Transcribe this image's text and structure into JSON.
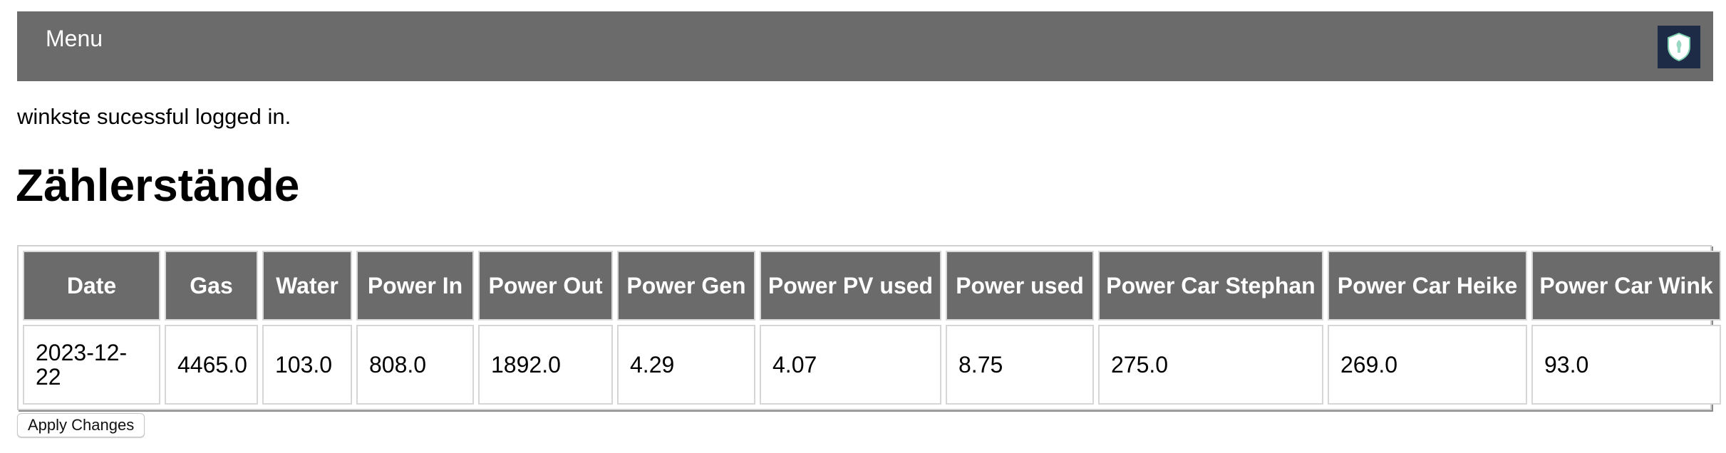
{
  "nav": {
    "menu_label": "Menu",
    "logo_icon": "shield-icon"
  },
  "status": {
    "message": "winkste sucessful logged in."
  },
  "page": {
    "title": "Zählerstände"
  },
  "table": {
    "columns": [
      "Date",
      "Gas",
      "Water",
      "Power In",
      "Power Out",
      "Power Gen",
      "Power PV used",
      "Power used",
      "Power Car Stephan",
      "Power Car Heike",
      "Power Car Wink"
    ],
    "rows": [
      [
        "2023-12-22",
        "4465.0",
        "103.0",
        "808.0",
        "1892.0",
        "4.29",
        "4.07",
        "8.75",
        "275.0",
        "269.0",
        "93.0"
      ]
    ]
  },
  "actions": {
    "apply_label": "Apply Changes"
  },
  "colors": {
    "header_bg": "#6b6b6b",
    "header_text": "#ffffff",
    "logo_bg": "#1e2b46"
  }
}
